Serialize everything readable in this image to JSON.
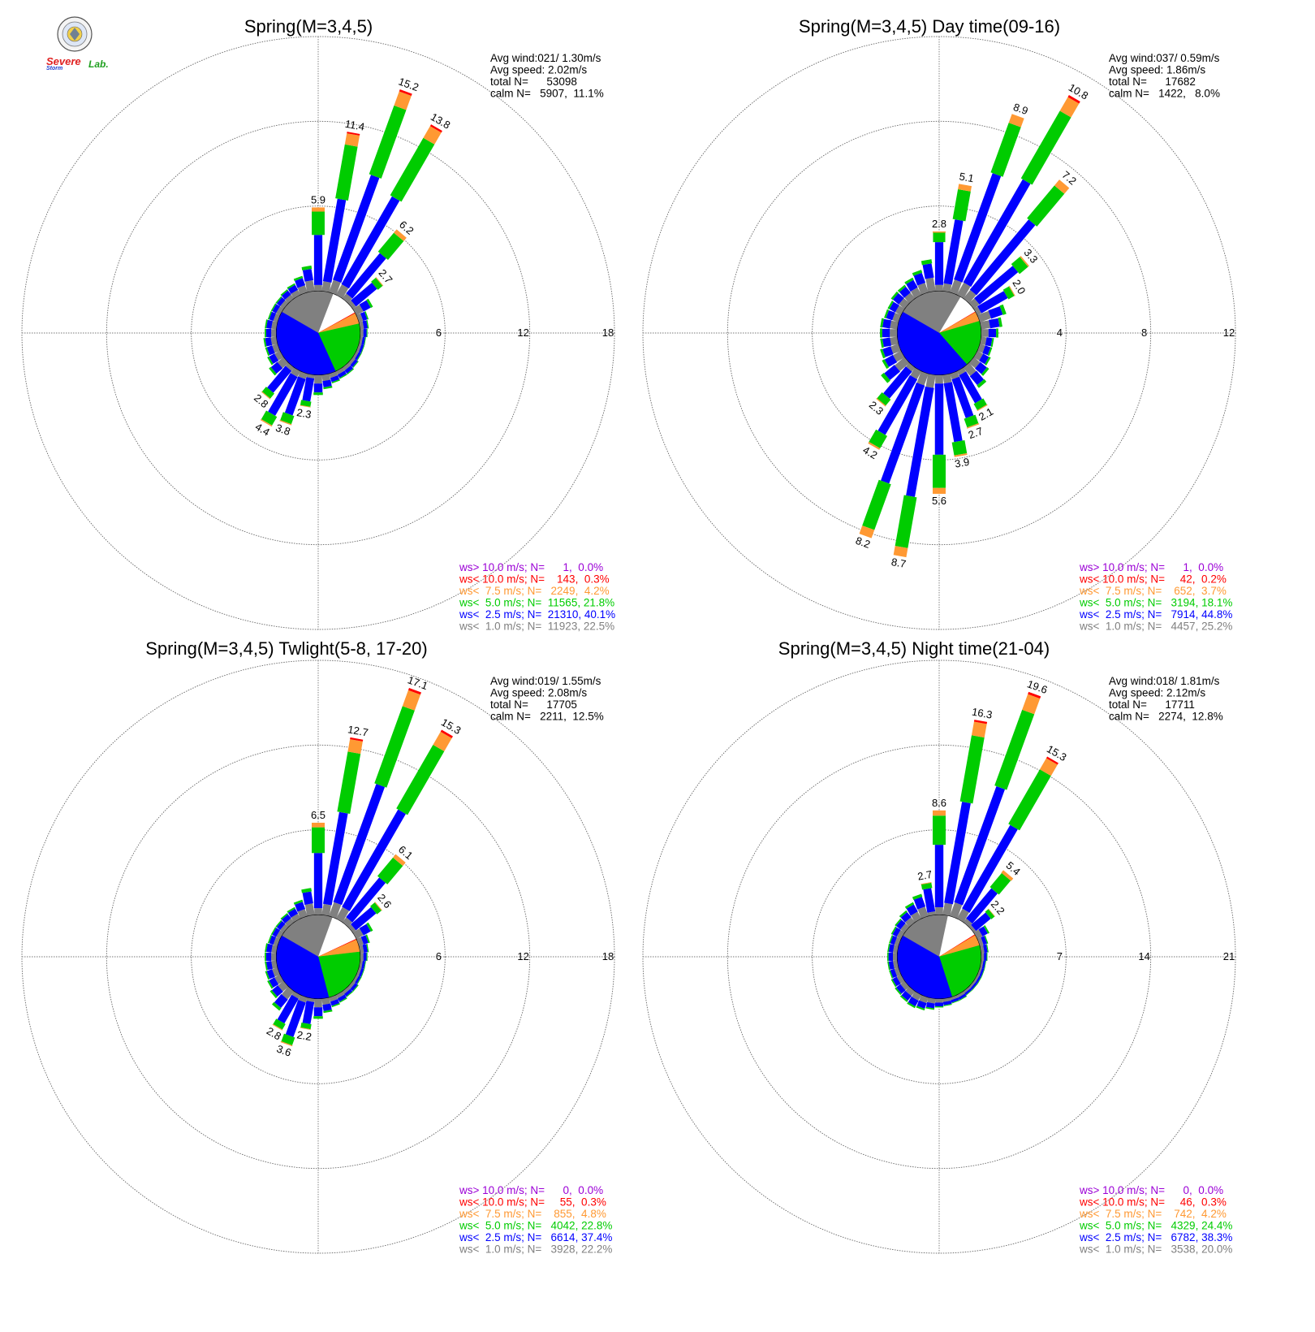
{
  "colors": {
    "gt10": "#9b00d6",
    "lt10": "#ff0000",
    "lt7_5": "#ff9933",
    "lt5": "#00cc00",
    "lt2_5": "#0000ff",
    "lt1": "#808080",
    "calm": "#ffffff"
  },
  "logo": {
    "icon": "severe-storm-lab-seal-icon",
    "text1": "Severe",
    "text2": "Storm",
    "text3": "Lab."
  },
  "panels": [
    {
      "title": "Spring(M=3,4,5)",
      "info": [
        "Avg wind:021/ 1.30m/s",
        "Avg speed: 2.02m/s",
        "total N=      53098",
        "calm N=   5907,  11.1%"
      ],
      "legend": [
        "ws> 10.0 m/s; N=      1,  0.0%",
        "ws< 10.0 m/s; N=    143,  0.3%",
        "ws<  7.5 m/s; N=   2249,  4.2%",
        "ws<  5.0 m/s; N=  11565, 21.8%",
        "ws<  2.5 m/s; N=  21310, 40.1%",
        "ws<  1.0 m/s; N=  11923, 22.5%"
      ]
    },
    {
      "title": "Spring(M=3,4,5) Day time(09-16)",
      "info": [
        "Avg wind:037/ 0.59m/s",
        "Avg speed: 1.86m/s",
        "total N=      17682",
        "calm N=   1422,   8.0%"
      ],
      "legend": [
        "ws> 10.0 m/s; N=      1,  0.0%",
        "ws< 10.0 m/s; N=     42,  0.2%",
        "ws<  7.5 m/s; N=    652,  3.7%",
        "ws<  5.0 m/s; N=   3194, 18.1%",
        "ws<  2.5 m/s; N=   7914, 44.8%",
        "ws<  1.0 m/s; N=   4457, 25.2%"
      ]
    },
    {
      "title": "Spring(M=3,4,5) Twlight(5-8, 17-20)",
      "info": [
        "Avg wind:019/ 1.55m/s",
        "Avg speed: 2.08m/s",
        "total N=      17705",
        "calm N=   2211,  12.5%"
      ],
      "legend": [
        "ws> 10.0 m/s; N=      0,  0.0%",
        "ws< 10.0 m/s; N=     55,  0.3%",
        "ws<  7.5 m/s; N=    855,  4.8%",
        "ws<  5.0 m/s; N=   4042, 22.8%",
        "ws<  2.5 m/s; N=   6614, 37.4%",
        "ws<  1.0 m/s; N=   3928, 22.2%"
      ]
    },
    {
      "title": "Spring(M=3,4,5) Night time(21-04)",
      "info": [
        "Avg wind:018/ 1.81m/s",
        "Avg speed: 2.12m/s",
        "total N=      17711",
        "calm N=   2274,  12.8%"
      ],
      "legend": [
        "ws> 10.0 m/s; N=      0,  0.0%",
        "ws< 10.0 m/s; N=     46,  0.3%",
        "ws<  7.5 m/s; N=    742,  4.2%",
        "ws<  5.0 m/s; N=   4329, 24.4%",
        "ws<  2.5 m/s; N=   6782, 38.3%",
        "ws<  1.0 m/s; N=   3538, 20.0%"
      ]
    }
  ],
  "chart_data": [
    {
      "type": "wind_rose",
      "title": "Spring(M=3,4,5)",
      "ring_ticks": [
        6,
        12,
        18
      ],
      "max_radius": 18,
      "speed_bins": [
        "ws< 1.0",
        "ws< 2.5",
        "ws< 5.0",
        "ws< 7.5",
        "ws< 10.0",
        "ws> 10.0"
      ],
      "directions_deg": [
        0,
        10,
        20,
        30,
        40,
        50,
        60,
        70,
        80,
        90,
        100,
        110,
        120,
        130,
        140,
        150,
        160,
        170,
        180,
        190,
        200,
        210,
        220,
        230,
        240,
        250,
        260,
        270,
        280,
        290,
        300,
        310,
        320,
        330,
        340,
        350
      ],
      "frequency_pct": [
        5.9,
        11.4,
        15.2,
        13.8,
        6.2,
        2.7,
        1.3,
        0.7,
        0.6,
        0.5,
        0.4,
        0.4,
        0.4,
        0.5,
        0.6,
        0.6,
        0.7,
        1.0,
        1.4,
        2.3,
        3.8,
        4.4,
        2.8,
        1.3,
        1.0,
        0.9,
        0.9,
        0.8,
        0.8,
        0.7,
        0.7,
        0.7,
        0.8,
        0.9,
        1.2,
        1.8
      ],
      "labels": {
        "0": "5.9",
        "10": "11.4",
        "20": "15.2",
        "30": "13.8",
        "40": "6.2",
        "50": "2.7",
        "190": "2.3",
        "200": "3.8",
        "210": "4.4",
        "220": "2.8"
      },
      "calm_pct": 11.1,
      "sector_pie_pct": [
        22.5,
        40.1,
        21.8,
        4.2,
        0.3,
        0.0
      ]
    },
    {
      "type": "wind_rose",
      "title": "Spring(M=3,4,5) Day time(09-16)",
      "ring_ticks": [
        4,
        8,
        12
      ],
      "max_radius": 12,
      "speed_bins": [
        "ws< 1.0",
        "ws< 2.5",
        "ws< 5.0",
        "ws< 7.5",
        "ws< 10.0",
        "ws> 10.0"
      ],
      "directions_deg": [
        0,
        10,
        20,
        30,
        40,
        50,
        60,
        70,
        80,
        90,
        100,
        110,
        120,
        130,
        140,
        150,
        160,
        170,
        180,
        190,
        200,
        210,
        220,
        230,
        240,
        250,
        260,
        270,
        280,
        290,
        300,
        310,
        320,
        330,
        340,
        350
      ],
      "frequency_pct": [
        2.8,
        5.1,
        8.9,
        10.8,
        7.2,
        3.3,
        2.0,
        1.3,
        1.0,
        0.8,
        0.6,
        0.6,
        0.7,
        0.9,
        1.2,
        2.1,
        2.7,
        3.9,
        5.6,
        8.7,
        8.2,
        4.2,
        2.3,
        1.4,
        1.0,
        0.9,
        0.8,
        0.8,
        0.8,
        0.7,
        0.7,
        0.8,
        0.8,
        0.9,
        1.1,
        1.5
      ],
      "labels": {
        "0": "2.8",
        "10": "5.1",
        "20": "8.9",
        "30": "10.8",
        "40": "7.2",
        "50": "3.3",
        "60": "2.0",
        "150": "2.1",
        "160": "2.7",
        "170": "3.9",
        "180": "5.6",
        "190": "8.7",
        "200": "8.2",
        "210": "4.2",
        "220": "2.3"
      },
      "calm_pct": 8.0,
      "sector_pie_pct": [
        25.2,
        44.8,
        18.1,
        3.7,
        0.2,
        0.0
      ]
    },
    {
      "type": "wind_rose",
      "title": "Spring(M=3,4,5) Twlight(5-8, 17-20)",
      "ring_ticks": [
        6,
        12,
        18
      ],
      "max_radius": 18,
      "speed_bins": [
        "ws< 1.0",
        "ws< 2.5",
        "ws< 5.0",
        "ws< 7.5",
        "ws< 10.0",
        "ws> 10.0"
      ],
      "directions_deg": [
        0,
        10,
        20,
        30,
        40,
        50,
        60,
        70,
        80,
        90,
        100,
        110,
        120,
        130,
        140,
        150,
        160,
        170,
        180,
        190,
        200,
        210,
        220,
        230,
        240,
        250,
        260,
        270,
        280,
        290,
        300,
        310,
        320,
        330,
        340,
        350
      ],
      "frequency_pct": [
        6.5,
        12.7,
        17.1,
        15.3,
        6.1,
        2.6,
        1.3,
        0.8,
        0.6,
        0.5,
        0.4,
        0.4,
        0.4,
        0.5,
        0.5,
        0.6,
        0.7,
        1.0,
        1.4,
        2.2,
        3.6,
        2.8,
        1.7,
        1.2,
        1.0,
        0.9,
        0.8,
        0.8,
        0.8,
        0.7,
        0.7,
        0.7,
        0.8,
        0.9,
        1.2,
        1.9
      ],
      "labels": {
        "0": "6.5",
        "10": "12.7",
        "20": "17.1",
        "30": "15.3",
        "40": "6.1",
        "50": "2.6",
        "190": "2.2",
        "200": "3.6",
        "210": "2.8"
      },
      "calm_pct": 12.5,
      "sector_pie_pct": [
        22.2,
        37.4,
        22.8,
        4.8,
        0.3,
        0.0
      ]
    },
    {
      "type": "wind_rose",
      "title": "Spring(M=3,4,5) Night time(21-04)",
      "ring_ticks": [
        7,
        14,
        21
      ],
      "max_radius": 21,
      "speed_bins": [
        "ws< 1.0",
        "ws< 2.5",
        "ws< 5.0",
        "ws< 7.5",
        "ws< 10.0",
        "ws> 10.0"
      ],
      "directions_deg": [
        0,
        10,
        20,
        30,
        40,
        50,
        60,
        70,
        80,
        90,
        100,
        110,
        120,
        130,
        140,
        150,
        160,
        170,
        180,
        190,
        200,
        210,
        220,
        230,
        240,
        250,
        260,
        270,
        280,
        290,
        300,
        310,
        320,
        330,
        340,
        350
      ],
      "frequency_pct": [
        8.6,
        16.3,
        19.6,
        15.3,
        5.4,
        2.2,
        1.1,
        0.7,
        0.6,
        0.5,
        0.4,
        0.4,
        0.4,
        0.4,
        0.4,
        0.5,
        0.5,
        0.6,
        0.7,
        0.9,
        1.1,
        1.2,
        1.1,
        1.0,
        0.9,
        0.8,
        0.8,
        0.8,
        0.8,
        0.8,
        0.9,
        1.0,
        1.2,
        1.5,
        1.9,
        2.7
      ],
      "labels": {
        "0": "8.6",
        "10": "16.3",
        "20": "19.6",
        "30": "15.3",
        "40": "5.4",
        "50": "2.2",
        "350": "2.7"
      },
      "calm_pct": 12.8,
      "sector_pie_pct": [
        20.0,
        38.3,
        24.4,
        4.2,
        0.3,
        0.0
      ]
    }
  ]
}
